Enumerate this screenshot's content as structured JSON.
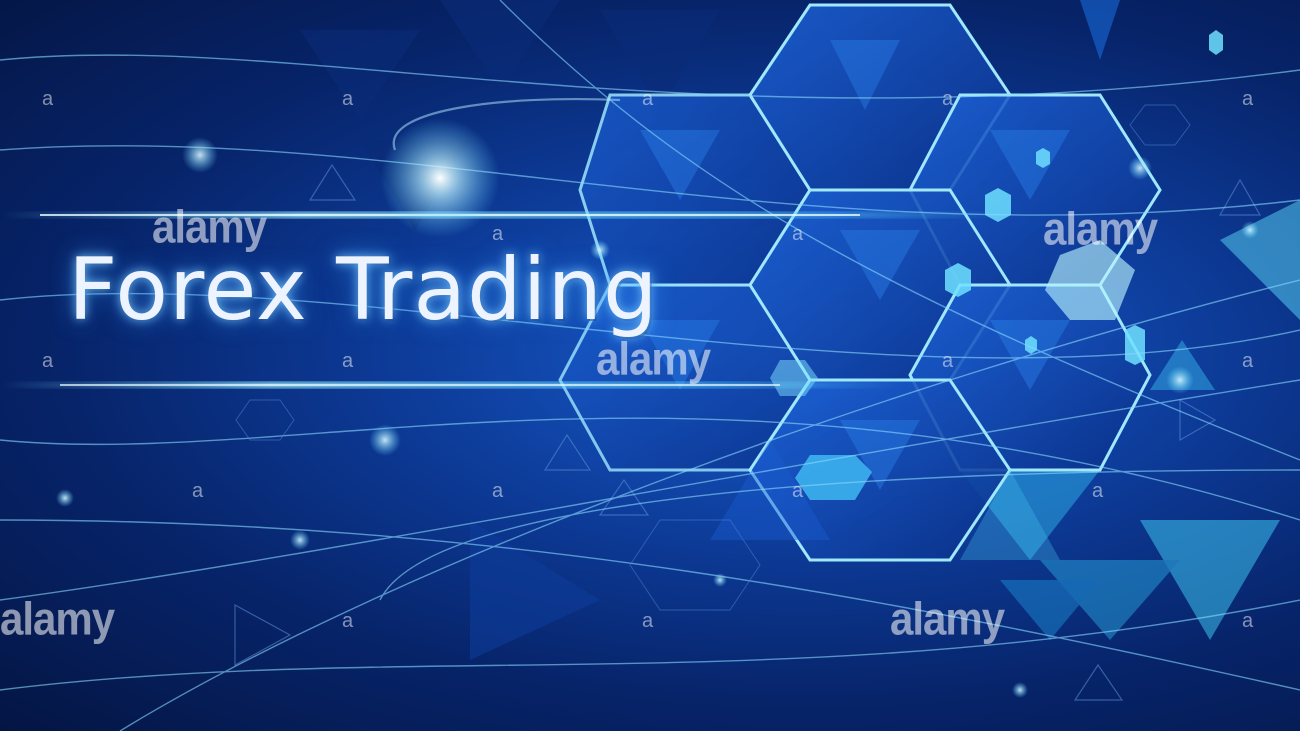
{
  "headline": "Forex Trading",
  "watermarks": {
    "brand": "alamy",
    "small_mark": "a"
  },
  "colors": {
    "background_deep": "#041543",
    "background_mid": "#0d3c9a",
    "glow": "#5fd4ff",
    "text": "#eef4ff"
  }
}
